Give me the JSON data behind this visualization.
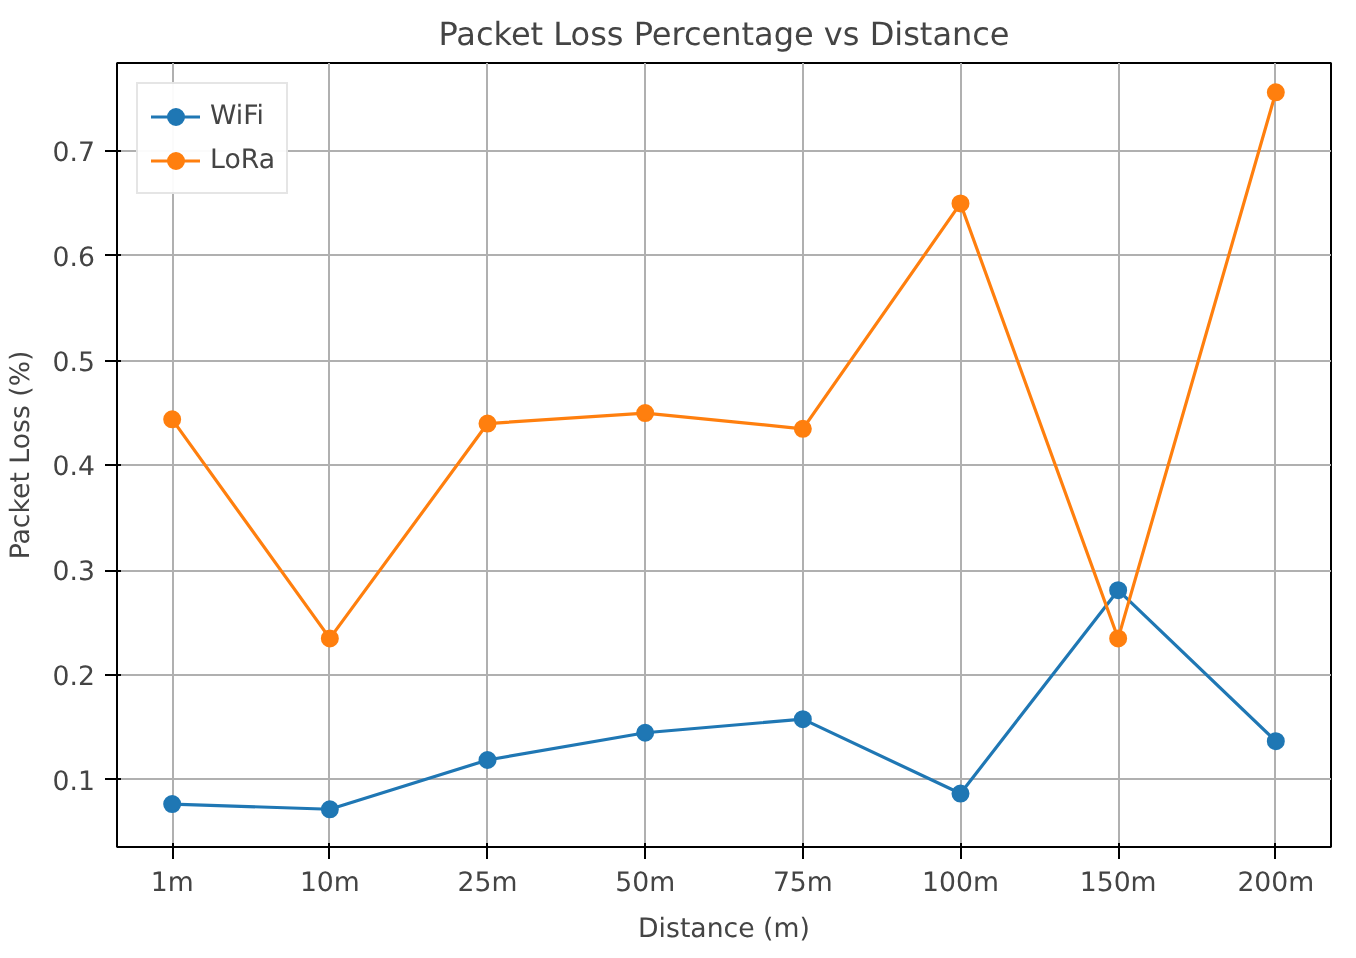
{
  "chart_data": {
    "type": "line",
    "title": "Packet Loss Percentage vs Distance",
    "xlabel": "Distance (m)",
    "ylabel": "Packet Loss (%)",
    "categories": [
      "1m",
      "10m",
      "25m",
      "50m",
      "75m",
      "100m",
      "150m",
      "200m"
    ],
    "series": [
      {
        "name": "WiFi",
        "color": "#1f77b4",
        "values": [
          0.077,
          0.072,
          0.119,
          0.145,
          0.158,
          0.087,
          0.281,
          0.137
        ]
      },
      {
        "name": "LoRa",
        "color": "#ff7f0e",
        "values": [
          0.444,
          0.235,
          0.44,
          0.45,
          0.435,
          0.65,
          0.235,
          0.756
        ]
      }
    ],
    "ylim": [
      0.036,
      0.784
    ],
    "yticks": [
      0.1,
      0.2,
      0.3,
      0.4,
      0.5,
      0.6,
      0.7
    ],
    "grid": true,
    "legend": "top left",
    "marker": "circle",
    "line_style": "solid"
  }
}
